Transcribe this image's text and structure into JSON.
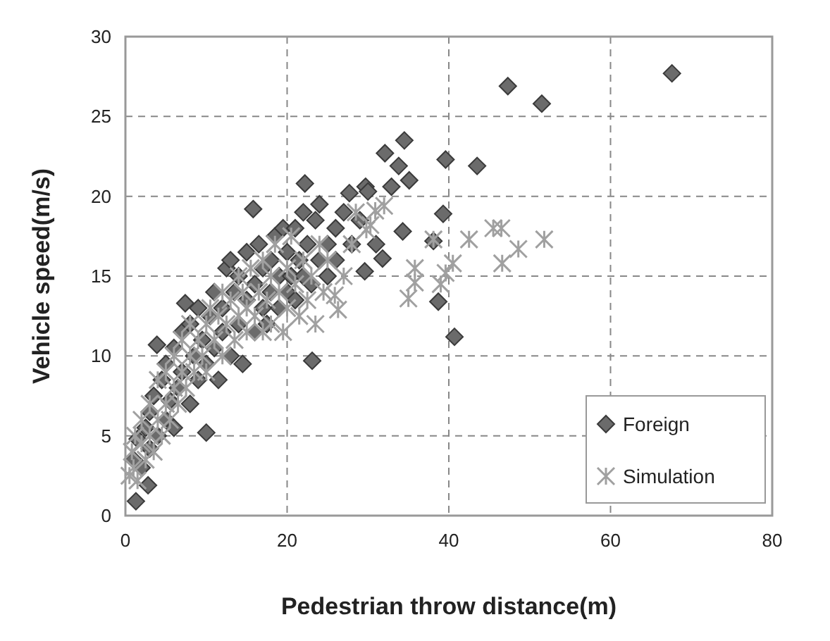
{
  "chart_data": {
    "type": "scatter",
    "xlabel": "Pedestrian throw distance(m)",
    "ylabel": "Vehicle speed(m/s)",
    "xlim": [
      0,
      80
    ],
    "xticks": [
      0,
      20,
      40,
      60,
      80
    ],
    "ylim": [
      0,
      30
    ],
    "yticks": [
      0,
      5,
      10,
      15,
      20,
      25,
      30
    ],
    "grid": true,
    "legend": "bottom right",
    "series": [
      {
        "name": "Foreign",
        "color": "#6b6b6b",
        "marker": "diamond",
        "x": [
          1.3,
          2.8,
          1,
          1.5,
          2,
          2.5,
          3,
          3,
          3.5,
          4,
          3.9,
          4.5,
          5,
          5,
          5.5,
          6,
          6,
          6.5,
          7,
          7.4,
          7,
          8,
          8,
          8.5,
          9,
          9,
          9.5,
          10,
          10,
          10.5,
          11,
          11,
          11.5,
          12,
          12,
          12.5,
          13,
          13,
          13.5,
          14,
          14,
          14.5,
          15,
          15,
          15.8,
          16,
          16,
          16.5,
          17,
          17,
          17.5,
          18,
          18,
          18.5,
          19,
          19,
          19.5,
          20,
          20,
          20.5,
          21,
          21,
          21.5,
          22,
          22,
          22.2,
          22.5,
          23,
          23.1,
          23.5,
          24,
          24,
          25,
          25,
          26,
          26,
          27,
          27.7,
          28,
          29,
          29.6,
          29.7,
          30,
          31,
          31.8,
          32.1,
          32.9,
          33.8,
          34.5,
          34.3,
          35.1,
          38.1,
          38.7,
          39.3,
          39.6,
          40.7,
          43.5,
          47.3,
          51.5,
          67.6
        ],
        "values": [
          0.9,
          1.9,
          3.5,
          4.8,
          3,
          5.5,
          4.2,
          6.5,
          7.5,
          5,
          10.7,
          8.5,
          6,
          9.5,
          7.2,
          10.5,
          5.5,
          8,
          11.5,
          13.3,
          9,
          7,
          12,
          10,
          8.5,
          13,
          11,
          5.2,
          9.5,
          12.5,
          14,
          10.5,
          8.5,
          13,
          11.5,
          15.5,
          16,
          10,
          14,
          12,
          15,
          9.5,
          13.5,
          16.5,
          19.2,
          11.5,
          14.5,
          17,
          13,
          15.5,
          12,
          16,
          14,
          17.5,
          15,
          13,
          18,
          16.5,
          14,
          15,
          18,
          13.5,
          16,
          19,
          15,
          20.8,
          17,
          14.5,
          9.7,
          18.5,
          16,
          19.5,
          17,
          15,
          18,
          16,
          19,
          20.2,
          17,
          18.5,
          15.3,
          20.6,
          20.3,
          17,
          16.1,
          22.7,
          20.6,
          21.9,
          23.5,
          17.8,
          21,
          17.2,
          13.4,
          18.9,
          22.3,
          11.2,
          21.9,
          26.9,
          25.8,
          27.7
        ]
      },
      {
        "name": "Simulation",
        "color": "#a0a0a0",
        "marker": "cross",
        "x": [
          0.5,
          0.8,
          1,
          1.2,
          1.5,
          2,
          2,
          2.5,
          3,
          3,
          3.5,
          4,
          4,
          4.5,
          5,
          5,
          5.5,
          6,
          6,
          6.5,
          7,
          7,
          7.5,
          8,
          8,
          8.5,
          9,
          9.5,
          10,
          10,
          10.5,
          11,
          11.5,
          12,
          12,
          12.5,
          13,
          13.5,
          14,
          14,
          14.5,
          15,
          15,
          15.5,
          16,
          16.5,
          17,
          17,
          17.5,
          18,
          18,
          18.5,
          19,
          19.5,
          20,
          20,
          20.5,
          21,
          21.5,
          22,
          22.5,
          23,
          23.5,
          24,
          24.5,
          25,
          25.9,
          26.3,
          27,
          28,
          28.5,
          29.8,
          30.3,
          30.9,
          32,
          35,
          35.8,
          35.8,
          38.1,
          39,
          39.6,
          40.5,
          42.5,
          45.5,
          46.5,
          46.6,
          48.6,
          51.8
        ],
        "values": [
          2.5,
          4,
          3,
          5,
          2.2,
          4.5,
          6,
          3.5,
          5,
          7,
          4,
          6,
          8.5,
          5,
          7,
          9,
          6,
          8,
          10,
          7,
          9,
          11,
          8,
          10,
          12,
          9,
          11,
          10,
          12,
          9,
          13,
          11,
          12.5,
          10,
          14,
          12,
          13.5,
          11,
          15,
          12.5,
          14,
          11.5,
          13,
          15.5,
          12.5,
          14,
          16,
          11.5,
          13.5,
          15,
          12,
          17,
          14,
          11.5,
          15.5,
          13,
          17.5,
          14.5,
          12.5,
          16,
          13.5,
          15,
          12,
          17,
          14,
          16,
          13.8,
          12.9,
          15,
          17,
          19,
          17.9,
          18.2,
          19.1,
          19.4,
          13.6,
          14.6,
          15.5,
          17.3,
          14.5,
          15.2,
          15.8,
          17.3,
          18,
          18,
          15.8,
          16.7,
          17.3
        ]
      }
    ]
  }
}
